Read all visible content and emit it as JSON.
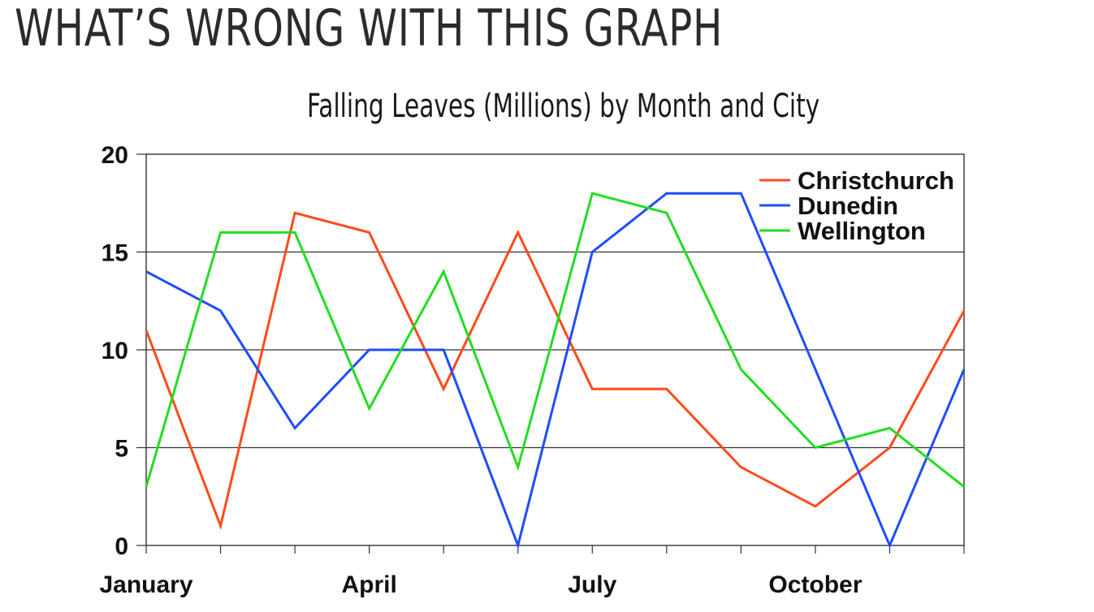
{
  "slide": {
    "title": "WHAT’S WRONG WITH THIS GRAPH"
  },
  "chart_data": {
    "type": "line",
    "title": "Falling Leaves (Millions) by Month and City",
    "xlabel": "",
    "ylabel": "",
    "x": [
      1,
      2,
      3,
      4,
      5,
      6,
      7,
      8,
      9,
      10,
      11,
      12
    ],
    "x_tick_labels": [
      {
        "x": 1,
        "label": "January"
      },
      {
        "x": 4,
        "label": "April"
      },
      {
        "x": 7,
        "label": "July"
      },
      {
        "x": 10,
        "label": "October"
      }
    ],
    "ylim": [
      0,
      20
    ],
    "yticks": [
      0,
      5,
      10,
      15,
      20
    ],
    "grid": "horizontal",
    "legend": "top-right",
    "series": [
      {
        "name": "Christchurch",
        "color": "#ff4a1c",
        "values": [
          11,
          1,
          17,
          16,
          8,
          16,
          8,
          8,
          4,
          2,
          5,
          12
        ]
      },
      {
        "name": "Dunedin",
        "color": "#1f4cff",
        "values": [
          14,
          12,
          6,
          10,
          10,
          0,
          15,
          18,
          18,
          9,
          0,
          9
        ]
      },
      {
        "name": "Wellington",
        "color": "#22dd22",
        "values": [
          3,
          16,
          16,
          7,
          14,
          4,
          18,
          17,
          9,
          5,
          6,
          3
        ]
      }
    ]
  }
}
